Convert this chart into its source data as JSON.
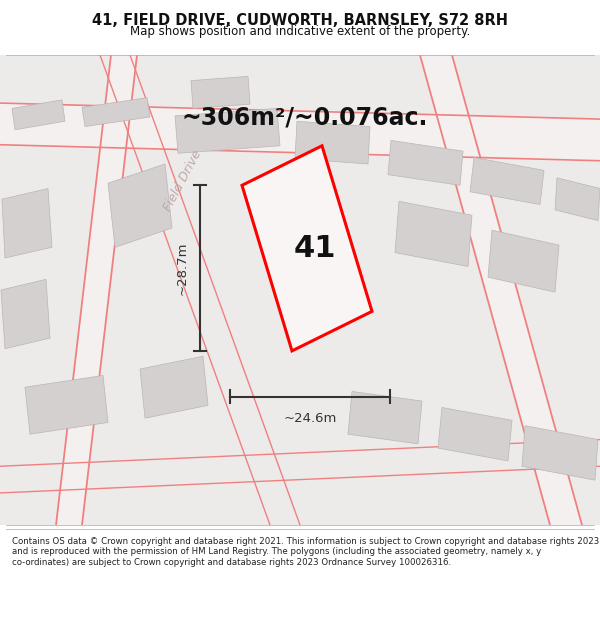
{
  "title": "41, FIELD DRIVE, CUDWORTH, BARNSLEY, S72 8RH",
  "subtitle": "Map shows position and indicative extent of the property.",
  "area_label": "~306m²/~0.076ac.",
  "plot_number": "41",
  "dim_width": "~24.6m",
  "dim_height": "~28.7m",
  "road_label": "Field Drive",
  "footer": "Contains OS data © Crown copyright and database right 2021. This information is subject to Crown copyright and database rights 2023 and is reproduced with the permission of HM Land Registry. The polygons (including the associated geometry, namely x, y co-ordinates) are subject to Crown copyright and database rights 2023 Ordnance Survey 100026316.",
  "bg_color": "#edeaea",
  "plot_fill": "#faf5f5",
  "plot_edge_color": "#ff0000",
  "dim_color": "#333333",
  "title_color": "#111111",
  "building_fill": "#d5d0d0",
  "building_edge": "#bbb4b4",
  "road_label_color": "#c0a8a8",
  "street_line_color": "#f08080",
  "road_body_color": "#f5f0f0"
}
